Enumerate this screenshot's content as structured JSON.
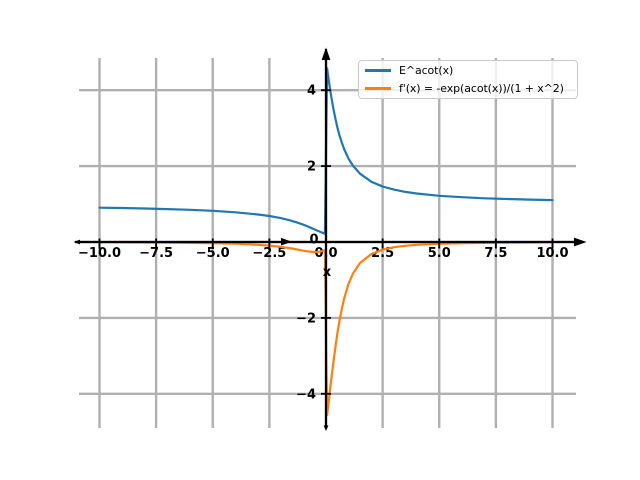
{
  "figure": {
    "background": "#ffffff"
  },
  "legend": {
    "position": "upper right",
    "entries": [
      {
        "label": "E^acot(x)",
        "color": "#1f77b4"
      },
      {
        "label": "f'(x) = -exp(acot(x))/(1 + x^2)",
        "color": "#ff7f0e"
      }
    ]
  },
  "chart_data": {
    "type": "line",
    "title": "",
    "xlabel": "x",
    "ylabel": "",
    "xlim": [
      -11,
      11.1
    ],
    "ylim": [
      -4.87,
      4.85
    ],
    "grid": true,
    "grid_color": "#b0b0b0",
    "axis_color": "#000000",
    "legend_position": "upper right",
    "xticks": {
      "values": [
        -10,
        -7.5,
        -5,
        -2.5,
        0,
        2.5,
        5,
        7.5,
        10
      ],
      "labels": [
        "−10.0",
        "−7.5",
        "−5.0",
        "−2.5",
        "0.0",
        "2.5",
        "5.0",
        "7.5",
        "10.0"
      ]
    },
    "yticks": {
      "values": [
        4,
        2,
        0,
        -2,
        -4
      ],
      "labels": [
        "4",
        "2",
        "0",
        "−2",
        "−4"
      ]
    },
    "series": [
      {
        "name": "E^acot(x)",
        "color": "#1f77b4",
        "points": [
          [
            -10,
            0.905
          ],
          [
            -9,
            0.895
          ],
          [
            -8,
            0.883
          ],
          [
            -7,
            0.868
          ],
          [
            -6,
            0.848
          ],
          [
            -5,
            0.821
          ],
          [
            -4,
            0.783
          ],
          [
            -3,
            0.725
          ],
          [
            -2.5,
            0.684
          ],
          [
            -2,
            0.629
          ],
          [
            -1.5,
            0.555
          ],
          [
            -1.2,
            0.499
          ],
          [
            -1,
            0.456
          ],
          [
            -0.8,
            0.408
          ],
          [
            -0.6,
            0.357
          ],
          [
            -0.5,
            0.33
          ],
          [
            -0.4,
            0.304
          ],
          [
            -0.3,
            0.278
          ],
          [
            -0.2,
            0.253
          ],
          [
            -0.1,
            0.23
          ],
          [
            -0.05,
            0.219
          ],
          [
            0.05,
            4.576
          ],
          [
            0.1,
            4.354
          ],
          [
            0.15,
            4.145
          ],
          [
            0.2,
            3.948
          ],
          [
            0.3,
            3.594
          ],
          [
            0.4,
            3.288
          ],
          [
            0.5,
            3.026
          ],
          [
            0.6,
            2.802
          ],
          [
            0.7,
            2.612
          ],
          [
            0.8,
            2.45
          ],
          [
            1,
            2.193
          ],
          [
            1.2,
            2.003
          ],
          [
            1.5,
            1.8
          ],
          [
            2,
            1.59
          ],
          [
            2.5,
            1.463
          ],
          [
            3,
            1.38
          ],
          [
            3.5,
            1.321
          ],
          [
            4,
            1.278
          ],
          [
            5,
            1.218
          ],
          [
            6,
            1.18
          ],
          [
            7,
            1.152
          ],
          [
            8,
            1.133
          ],
          [
            9,
            1.117
          ],
          [
            10,
            1.105
          ]
        ]
      },
      {
        "name": "f'(x) = -exp(acot(x))/(1 + x^2)",
        "color": "#ff7f0e",
        "points": [
          [
            -10,
            -0.009
          ],
          [
            -9,
            -0.011
          ],
          [
            -8,
            -0.014
          ],
          [
            -7,
            -0.017
          ],
          [
            -6,
            -0.023
          ],
          [
            -5,
            -0.032
          ],
          [
            -4,
            -0.046
          ],
          [
            -3,
            -0.073
          ],
          [
            -2.5,
            -0.094
          ],
          [
            -2,
            -0.126
          ],
          [
            -1.5,
            -0.171
          ],
          [
            -1.2,
            -0.205
          ],
          [
            -1,
            -0.228
          ],
          [
            -0.8,
            -0.249
          ],
          [
            -0.6,
            -0.262
          ],
          [
            -0.5,
            -0.264
          ],
          [
            -0.4,
            -0.262
          ],
          [
            -0.3,
            -0.255
          ],
          [
            -0.2,
            -0.243
          ],
          [
            -0.1,
            -0.227
          ],
          [
            -0.05,
            -0.218
          ],
          [
            0.05,
            -4.565
          ],
          [
            0.1,
            -4.311
          ],
          [
            0.15,
            -4.053
          ],
          [
            0.2,
            -3.796
          ],
          [
            0.3,
            -3.297
          ],
          [
            0.4,
            -2.835
          ],
          [
            0.5,
            -2.42
          ],
          [
            0.6,
            -2.06
          ],
          [
            0.7,
            -1.753
          ],
          [
            0.8,
            -1.494
          ],
          [
            1,
            -1.097
          ],
          [
            1.2,
            -0.821
          ],
          [
            1.5,
            -0.554
          ],
          [
            2,
            -0.318
          ],
          [
            2.5,
            -0.202
          ],
          [
            3,
            -0.138
          ],
          [
            3.5,
            -0.1
          ],
          [
            4,
            -0.075
          ],
          [
            5,
            -0.047
          ],
          [
            6,
            -0.032
          ],
          [
            7,
            -0.023
          ],
          [
            8,
            -0.017
          ],
          [
            9,
            -0.014
          ],
          [
            10,
            -0.011
          ]
        ]
      }
    ]
  }
}
